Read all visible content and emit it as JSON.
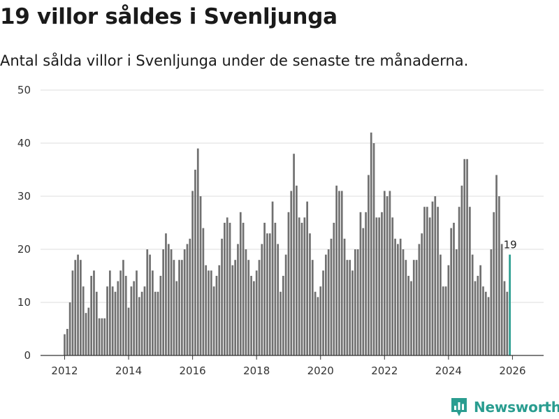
{
  "header": {
    "title": "19 villor såldes i Svenljunga",
    "subtitle": "Antal sålda villor i Svenljunga under de senaste tre månaderna."
  },
  "brand": {
    "name": "Newsworthy",
    "icon": "newsworthy-logo-icon"
  },
  "colors": {
    "bar": "#707070",
    "highlight": "#2a9d90",
    "grid": "#dddddd",
    "axis": "#333333"
  },
  "chart_data": {
    "type": "bar",
    "title": "19 villor såldes i Svenljunga",
    "subtitle": "Antal sålda villor i Svenljunga under de senaste tre månaderna.",
    "xlabel": "",
    "ylabel": "",
    "ylim": [
      0,
      50
    ],
    "yticks": [
      0,
      10,
      20,
      30,
      40,
      50
    ],
    "xticks": [
      "2012",
      "2014",
      "2016",
      "2018",
      "2020",
      "2022",
      "2024",
      "2026"
    ],
    "x_start": "2012-01",
    "x_end": "2026-03",
    "grid": true,
    "highlight_label": "19",
    "values": [
      4,
      5,
      10,
      16,
      18,
      19,
      18,
      13,
      8,
      9,
      15,
      16,
      12,
      7,
      7,
      7,
      13,
      16,
      13,
      12,
      14,
      16,
      18,
      15,
      9,
      13,
      14,
      16,
      11,
      12,
      13,
      20,
      19,
      16,
      12,
      12,
      15,
      20,
      23,
      21,
      20,
      18,
      14,
      18,
      18,
      20,
      21,
      22,
      31,
      35,
      39,
      30,
      24,
      17,
      16,
      16,
      13,
      15,
      17,
      22,
      25,
      26,
      25,
      17,
      18,
      21,
      27,
      25,
      20,
      18,
      15,
      14,
      16,
      18,
      21,
      25,
      23,
      23,
      29,
      25,
      21,
      12,
      15,
      19,
      27,
      31,
      38,
      32,
      26,
      25,
      26,
      29,
      23,
      18,
      12,
      11,
      13,
      16,
      19,
      20,
      22,
      25,
      32,
      31,
      31,
      22,
      18,
      18,
      16,
      20,
      20,
      27,
      24,
      27,
      34,
      42,
      40,
      26,
      26,
      27,
      31,
      30,
      31,
      26,
      22,
      21,
      22,
      20,
      18,
      15,
      14,
      18,
      18,
      21,
      23,
      28,
      28,
      26,
      29,
      30,
      28,
      19,
      13,
      13,
      17,
      24,
      25,
      20,
      28,
      32,
      37,
      37,
      28,
      19,
      14,
      15,
      17,
      13,
      12,
      11,
      20,
      27,
      34,
      30,
      21,
      14,
      12,
      19
    ]
  }
}
